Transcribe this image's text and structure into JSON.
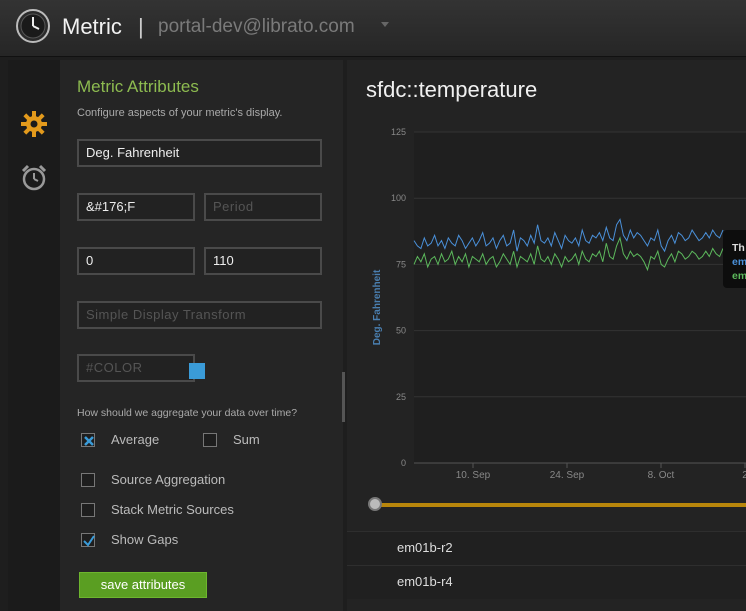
{
  "header": {
    "app_title": "Metric",
    "separator": "|",
    "account": "portal-dev@librato.com"
  },
  "sidebar": {
    "icons": [
      "gear-icon",
      "alarm-clock-icon"
    ]
  },
  "attributes": {
    "title": "Metric Attributes",
    "subtitle": "Configure aspects of your metric's display.",
    "display_units_long": "Deg. Fahrenheit",
    "display_units_short": "&#176;F",
    "period_placeholder": "Period",
    "display_min": "0",
    "display_max": "110",
    "transform_placeholder": "Simple Display Transform",
    "color_placeholder": "#COLOR",
    "color_value": "#3a9bd8",
    "aggregate_question": "How should we aggregate your data over time?",
    "average_label": "Average",
    "average_checked": true,
    "sum_label": "Sum",
    "sum_checked": false,
    "source_aggregation_label": "Source Aggregation",
    "source_aggregation_checked": false,
    "stack_sources_label": "Stack Metric Sources",
    "stack_sources_checked": false,
    "show_gaps_label": "Show Gaps",
    "show_gaps_checked": true,
    "save_label": "save attributes"
  },
  "main": {
    "metric_name": "sfdc::temperature",
    "tooltip_lines": [
      "Th",
      "em",
      "em"
    ],
    "sources": [
      "em01b-r2",
      "em01b-r4"
    ]
  },
  "chart_data": {
    "type": "line",
    "ylabel": "Deg. Fahrenheit",
    "ylim": [
      0,
      125
    ],
    "yticks": [
      "0",
      "25",
      "50",
      "75",
      "100",
      "125"
    ],
    "xtick_labels": [
      "10. Sep",
      "24. Sep",
      "8. Oct",
      "2"
    ],
    "grid": true,
    "series": [
      {
        "color": "#4a90d9",
        "values": [
          84,
          82,
          81,
          85,
          82,
          83,
          86,
          82,
          84,
          81,
          85,
          83,
          82,
          86,
          84,
          81,
          83,
          85,
          82,
          84,
          87,
          82,
          83,
          85,
          81,
          84,
          86,
          82,
          83,
          88,
          80,
          85,
          84,
          82,
          86,
          83,
          90,
          84,
          83,
          85,
          82,
          87,
          84,
          81,
          86,
          84,
          83,
          85,
          82,
          88,
          84,
          83,
          86,
          85,
          87,
          84,
          89,
          85,
          84,
          90,
          92,
          86,
          84,
          88,
          85,
          87,
          86,
          84,
          82,
          85,
          84,
          88,
          82,
          80,
          84,
          86,
          83,
          87,
          86,
          84,
          85,
          88,
          86,
          84,
          85,
          87,
          85,
          88,
          86,
          85,
          88
        ]
      },
      {
        "color": "#5cb85c",
        "values": [
          75,
          78,
          76,
          79,
          74,
          77,
          78,
          75,
          79,
          76,
          77,
          80,
          75,
          78,
          76,
          79,
          74,
          78,
          77,
          76,
          79,
          75,
          77,
          78,
          74,
          76,
          79,
          77,
          75,
          80,
          74,
          78,
          77,
          76,
          79,
          75,
          82,
          77,
          76,
          78,
          75,
          79,
          77,
          74,
          78,
          76,
          77,
          79,
          75,
          80,
          77,
          76,
          79,
          78,
          80,
          76,
          83,
          78,
          77,
          82,
          85,
          79,
          77,
          80,
          78,
          79,
          78,
          76,
          73,
          78,
          77,
          80,
          75,
          74,
          77,
          79,
          76,
          80,
          79,
          77,
          78,
          80,
          79,
          77,
          78,
          80,
          78,
          81,
          79,
          78,
          81
        ]
      }
    ]
  }
}
